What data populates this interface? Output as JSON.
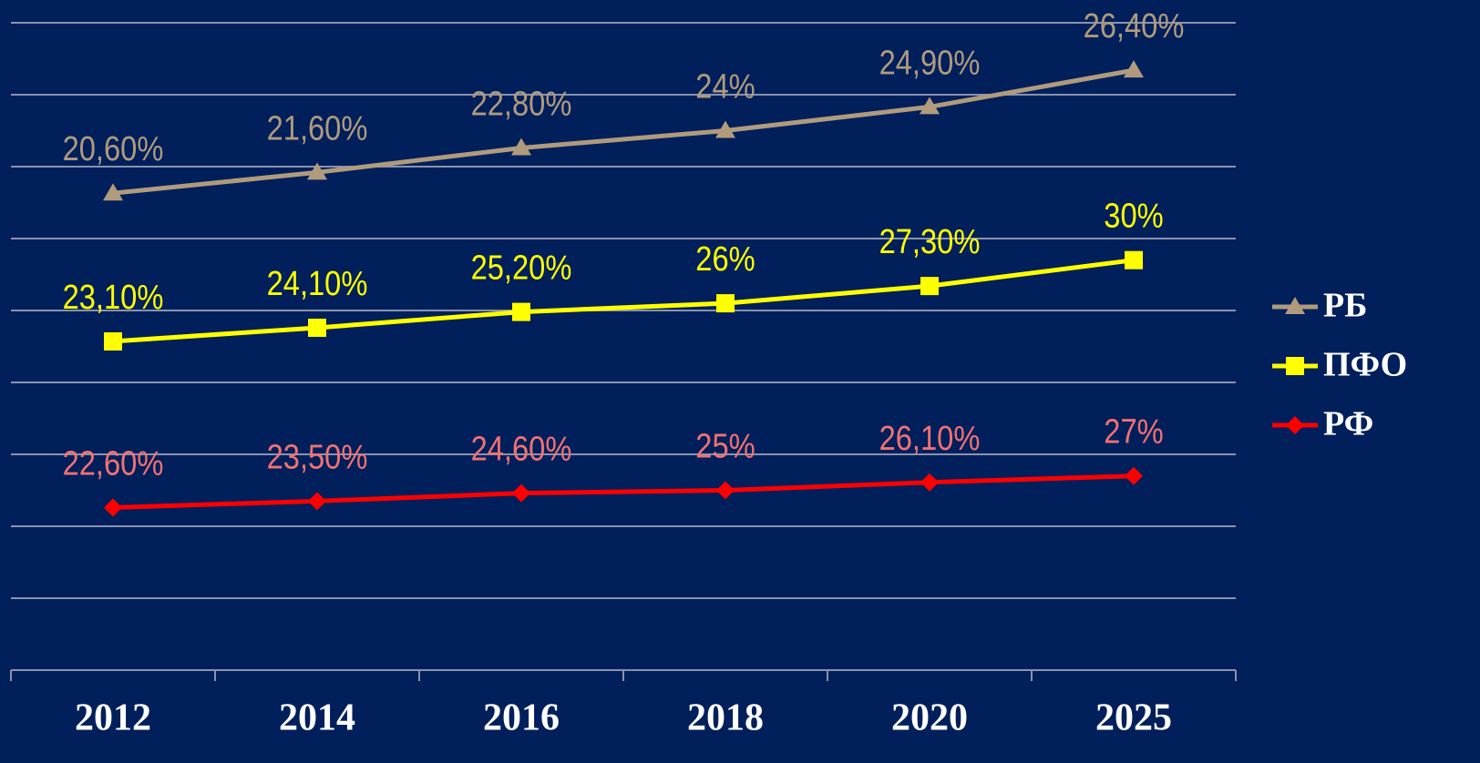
{
  "chart_data": {
    "type": "line",
    "stacked": true,
    "categories": [
      "2012",
      "2014",
      "2016",
      "2018",
      "2020",
      "2025"
    ],
    "ylim": [
      0,
      90
    ],
    "yticks": [
      0,
      10,
      20,
      30,
      40,
      50,
      60,
      70,
      80,
      90
    ],
    "grid": true,
    "legend": "right",
    "series": [
      {
        "name": "РФ",
        "color": "#ff0000",
        "label_color": "#f27272",
        "marker": "diamond",
        "values": [
          22.6,
          23.5,
          24.6,
          25,
          26.1,
          27
        ],
        "value_labels": [
          "22,60%",
          "23,50%",
          "24,60%",
          "25%",
          "26,10%",
          "27%"
        ]
      },
      {
        "name": "ПФО",
        "color": "#ffff00",
        "label_color": "#ffff00",
        "marker": "square",
        "values": [
          23.1,
          24.1,
          25.2,
          26,
          27.3,
          30
        ],
        "value_labels": [
          "23,10%",
          "24,10%",
          "25,20%",
          "26%",
          "27,30%",
          "30%"
        ]
      },
      {
        "name": "РБ",
        "color": "#b09b7d",
        "label_color": "#b09b7d",
        "marker": "triangle",
        "values": [
          20.6,
          21.6,
          22.8,
          24,
          24.9,
          26.4
        ],
        "value_labels": [
          "20,60%",
          "21,60%",
          "22,80%",
          "24%",
          "24,90%",
          "26,40%"
        ]
      }
    ]
  }
}
